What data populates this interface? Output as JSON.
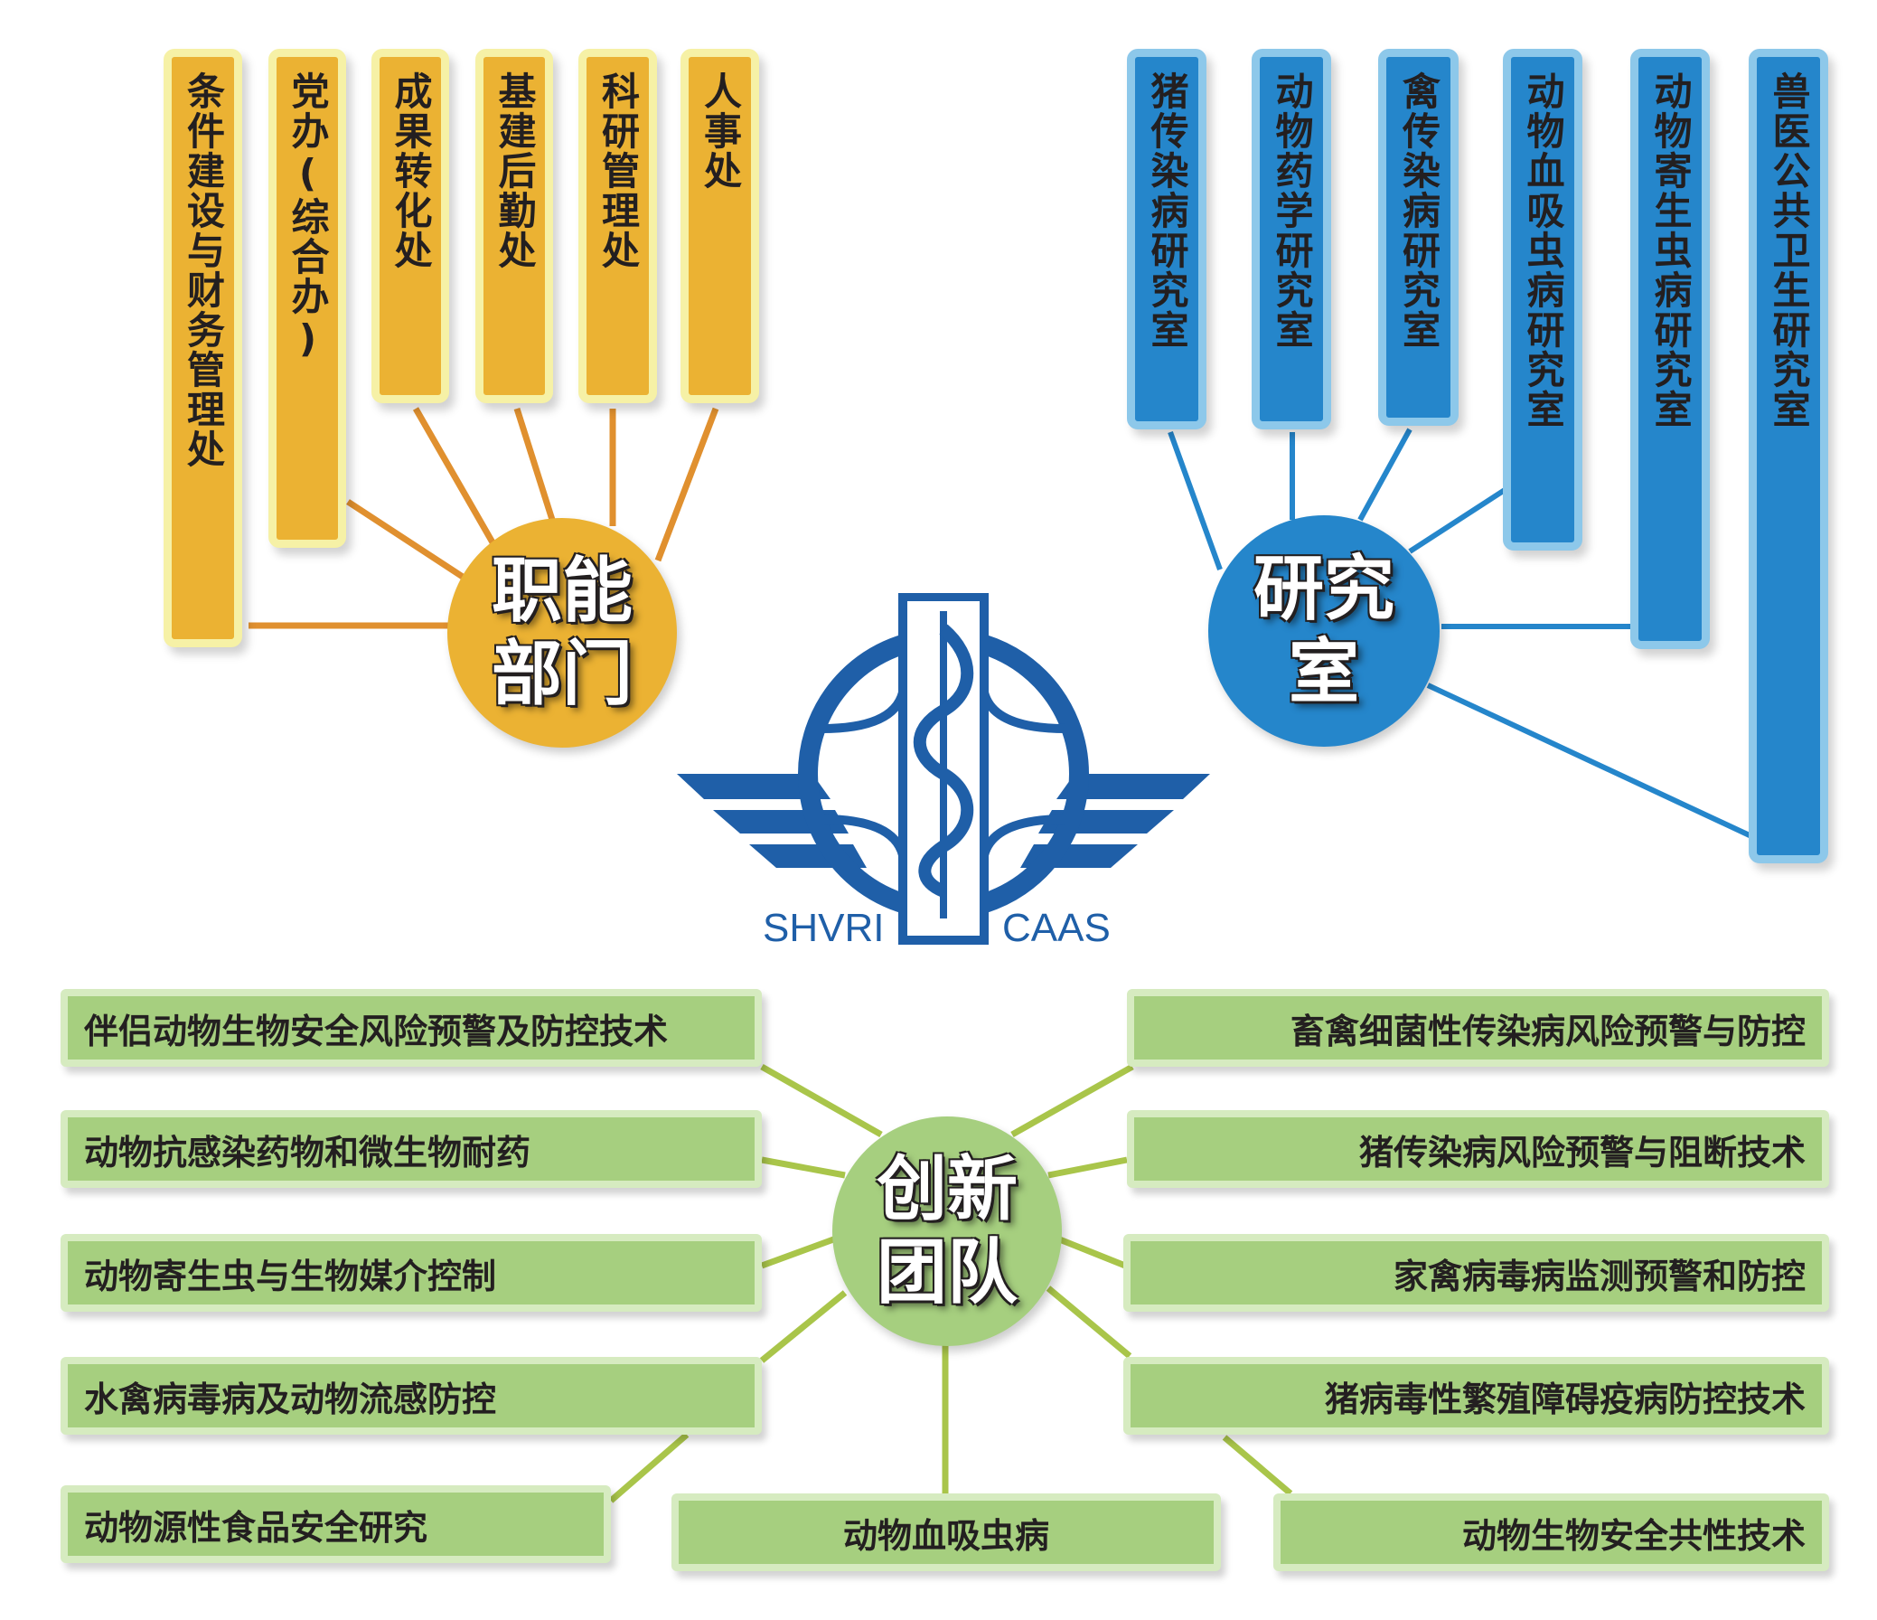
{
  "functional": {
    "hub": "职能部门",
    "items": [
      "条件建设与财务管理处",
      "党办(综合办)",
      "成果转化处",
      "基建后勤处",
      "科研管理处",
      "人事处"
    ]
  },
  "labs": {
    "hub": "研究室",
    "items": [
      "猪传染病研究室",
      "动物药学研究室",
      "禽传染病研究室",
      "动物血吸虫病研究室",
      "动物寄生虫病研究室",
      "兽医公共卫生研究室"
    ]
  },
  "innovation": {
    "hub": "创新团队",
    "left": [
      "伴侣动物生物安全风险预警及防控技术",
      "动物抗感染药物和微生物耐药",
      "动物寄生虫与生物媒介控制",
      "水禽病毒病及动物流感防控",
      "动物源性食品安全研究"
    ],
    "center": "动物血吸虫病",
    "right": [
      "畜禽细菌性传染病风险预警与防控",
      "猪传染病风险预警与阻断技术",
      "家禽病毒病监测预警和防控",
      "猪病毒性繁殖障碍疫病防控技术",
      "动物生物安全共性技术"
    ]
  },
  "logo": {
    "left_text": "SHVRI",
    "right_text": "CAAS"
  },
  "colors": {
    "yellow": "#EBB233",
    "blue": "#2586CB",
    "green": "#A6CF7F",
    "logo_blue": "#1F5FA8"
  }
}
